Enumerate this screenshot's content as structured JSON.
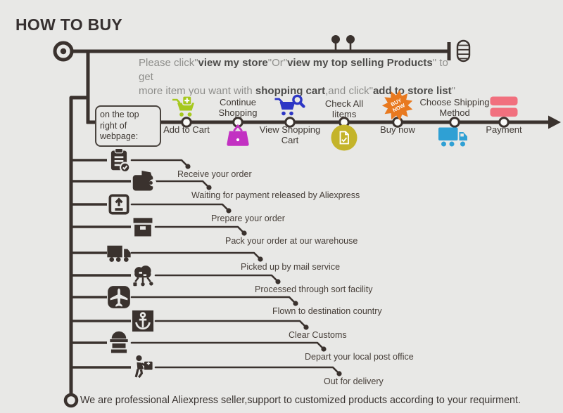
{
  "title": "HOW TO BUY",
  "intro": {
    "segments": [
      {
        "t": "Please click\"",
        "b": false
      },
      {
        "t": "view my store",
        "b": true
      },
      {
        "t": "\"Or\"",
        "b": false
      },
      {
        "t": "view my top selling Products",
        "b": true
      },
      {
        "t": "\" to get\nmore item you want with ",
        "b": false
      },
      {
        "t": "shopping cart",
        "b": true
      },
      {
        "t": ",and click\"",
        "b": false
      },
      {
        "t": "add to store list",
        "b": true
      },
      {
        "t": "\"",
        "b": false
      }
    ]
  },
  "webpage_note": "on the top right of webpage:",
  "top_row": {
    "items": [
      {
        "label": "Add to Cart",
        "icon": "cart-plus",
        "color": "#a6c81e"
      },
      {
        "label": "Continue Shopping",
        "icon": "shopping-bag",
        "color": "#c231c2"
      },
      {
        "label": "View Shopping Cart",
        "icon": "cart-search",
        "color": "#2d36c5"
      },
      {
        "label": "Check All Iitems",
        "icon": "document-badge",
        "color": "#c4b42a"
      },
      {
        "label": "Buy now",
        "icon": "buy-now-burst",
        "color": "#e8791f",
        "burst_text": "BUY NOW"
      },
      {
        "label": "Choose Shipping Method",
        "icon": "shipping-truck",
        "color": "#2fa0d4"
      },
      {
        "label": "Payment",
        "icon": "credit-card",
        "color": "#f1707e"
      }
    ]
  },
  "steps": {
    "items": [
      {
        "label": "Receive your order",
        "icon": "clipboard-check"
      },
      {
        "label": "Waiting for payment released by Aliexpress",
        "icon": "wallet"
      },
      {
        "label": "Prepare your order",
        "icon": "package-up"
      },
      {
        "label": "Pack your order at our warehouse",
        "icon": "box"
      },
      {
        "label": "Picked up by mail service",
        "icon": "truck"
      },
      {
        "label": "Processed through sort facility",
        "icon": "network-cloud"
      },
      {
        "label": "Flown to destination country",
        "icon": "airplane"
      },
      {
        "label": "Clear Customs",
        "icon": "anchor"
      },
      {
        "label": "Depart your local post office",
        "icon": "postbox"
      },
      {
        "label": "Out for delivery",
        "icon": "courier"
      }
    ]
  },
  "footer": "We are professional Aliexpress seller,support to customized products according to your requirment.",
  "colors": {
    "background": "#e8e8e6",
    "line": "#3a322e",
    "add_to_cart_green": "#a6c81e",
    "bag_magenta": "#c231c2",
    "cart_blue": "#2d36c5",
    "check_yellow": "#c4b42a",
    "buy_now_orange": "#e8791f",
    "truck_blue": "#2fa0d4",
    "payment_pink": "#f1707e"
  }
}
